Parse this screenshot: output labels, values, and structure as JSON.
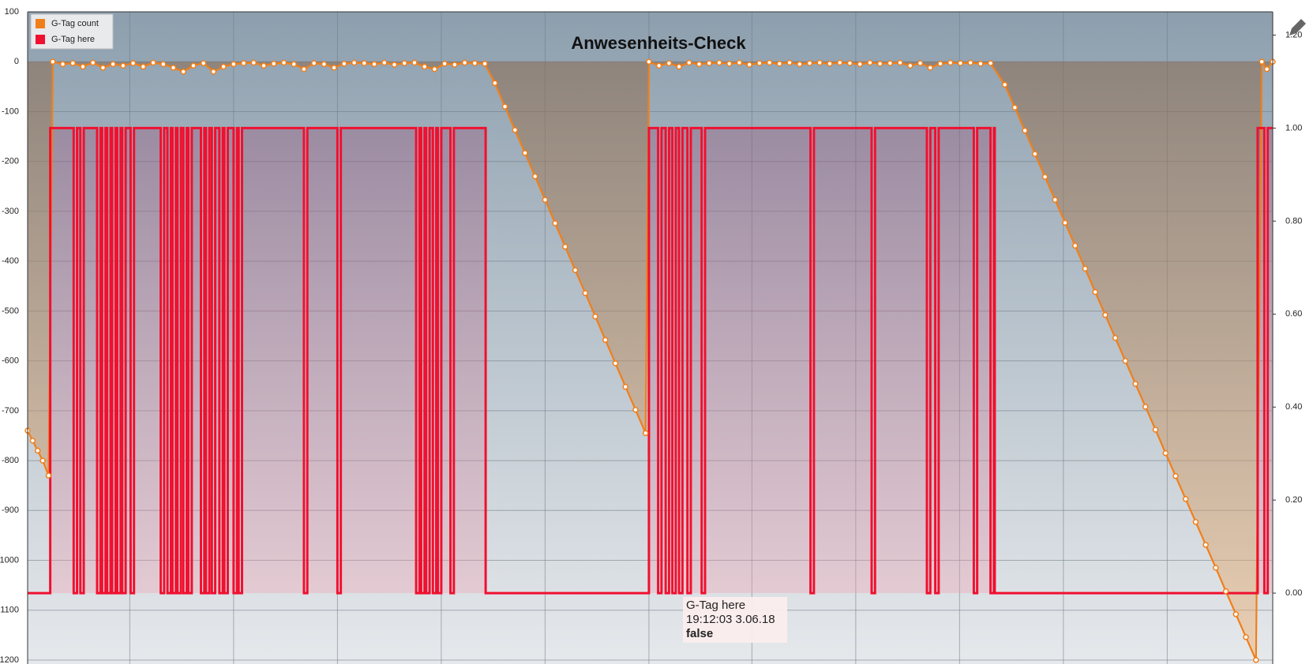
{
  "chart_data": {
    "type": "line",
    "title": "Anwesenheits-Check",
    "xlim": [
      0,
      1487
    ],
    "xticks": [
      122,
      246,
      370,
      494,
      618,
      742,
      865,
      989,
      1113,
      1237,
      1361
    ],
    "ylim": [
      -1200,
      100
    ],
    "yticks": [
      100,
      0,
      -100,
      -200,
      -300,
      -400,
      -500,
      -600,
      -700,
      -800,
      -900,
      {
        "value": -1000,
        "label": "1000"
      },
      {
        "value": -1100,
        "label": "1100"
      },
      {
        "value": -1200,
        "label": "1200"
      }
    ],
    "y2lim": [
      -0.144,
      1.25
    ],
    "y2ticks": [
      {
        "value": 1.2,
        "label": "1.20"
      },
      {
        "value": 1,
        "label": "1.00"
      },
      {
        "value": 0.8,
        "label": "0.80"
      },
      {
        "value": 0.6,
        "label": "0.60"
      },
      {
        "value": 0.4,
        "label": "0.40"
      },
      {
        "value": 0.2,
        "label": "0.20"
      },
      {
        "value": 0,
        "label": "0.00"
      }
    ],
    "grid": true,
    "legend": "upper left",
    "series": [
      {
        "name": "G-Tag count",
        "color": "#f07f1a",
        "axis": "y",
        "step": false,
        "x": [
          0,
          6,
          12,
          18,
          25,
          30,
          42,
          54,
          66,
          78,
          90,
          102,
          114,
          126,
          138,
          150,
          162,
          174,
          186,
          198,
          210,
          222,
          234,
          246,
          258,
          270,
          282,
          294,
          306,
          318,
          330,
          342,
          354,
          366,
          378,
          390,
          402,
          414,
          426,
          438,
          450,
          462,
          474,
          486,
          498,
          510,
          522,
          534,
          546,
          558,
          570,
          582,
          594,
          606,
          618,
          630,
          642,
          654,
          666,
          678,
          690,
          702,
          714,
          726,
          738,
          742,
          754,
          766,
          778,
          790,
          802,
          814,
          826,
          838,
          850,
          862,
          874,
          886,
          898,
          910,
          922,
          934,
          946,
          958,
          970,
          982,
          994,
          1006,
          1018,
          1030,
          1042,
          1054,
          1066,
          1078,
          1090,
          1102,
          1114,
          1126,
          1138,
          1150,
          1167,
          1179,
          1191,
          1203,
          1215,
          1227,
          1239,
          1251,
          1263,
          1275,
          1287,
          1299,
          1311,
          1323,
          1335,
          1347,
          1359,
          1371,
          1383,
          1395,
          1407,
          1419,
          1431,
          1443,
          1455,
          1467,
          1474,
          1480,
          1487
        ],
        "values": [
          -740,
          -760,
          -780,
          -800,
          -830,
          0,
          -5,
          -3,
          -10,
          -2,
          -12,
          -5,
          -8,
          -3,
          -10,
          -2,
          -5,
          -12,
          -20,
          -8,
          -3,
          -20,
          -10,
          -5,
          -3,
          -2,
          -8,
          -4,
          -2,
          -5,
          -15,
          -3,
          -5,
          -12,
          -4,
          -2,
          -3,
          -5,
          -2,
          -6,
          -3,
          -2,
          -10,
          -15,
          -4,
          -6,
          -2,
          -3,
          -4,
          -43,
          -90,
          -137,
          -183,
          -230,
          -277,
          -324,
          -371,
          -418,
          -464,
          -511,
          -558,
          -605,
          -652,
          -698,
          -745,
          0,
          -8,
          -3,
          -10,
          -2,
          -5,
          -3,
          -2,
          -4,
          -2,
          -6,
          -3,
          -2,
          -4,
          -2,
          -5,
          -3,
          -2,
          -4,
          -2,
          -3,
          -5,
          -2,
          -4,
          -3,
          -2,
          -8,
          -3,
          -12,
          -4,
          -2,
          -3,
          -2,
          -4,
          -3,
          -46,
          -92,
          -138,
          -185,
          -231,
          -277,
          -323,
          -369,
          -415,
          -462,
          -508,
          -554,
          -600,
          -646,
          -692,
          -738,
          -785,
          -831,
          -877,
          -923,
          -969,
          -1015,
          -1062,
          -1108,
          -1154,
          -1200,
          0,
          -15,
          0
        ]
      },
      {
        "name": "G-Tag here",
        "color": "#f0102f",
        "axis": "y2",
        "step": true,
        "x": [
          0,
          27,
          55,
          59,
          63,
          67,
          83,
          87,
          89,
          93,
          95,
          99,
          101,
          105,
          107,
          111,
          113,
          117,
          123,
          127,
          159,
          163,
          167,
          171,
          173,
          177,
          179,
          183,
          186,
          190,
          192,
          196,
          207,
          211,
          213,
          217,
          220,
          224,
          229,
          233,
          235,
          239,
          246,
          250,
          252,
          256,
          330,
          334,
          370,
          374,
          464,
          468,
          470,
          474,
          476,
          480,
          484,
          488,
          490,
          494,
          505,
          509,
          547,
          742,
          753,
          757,
          762,
          766,
          770,
          774,
          778,
          782,
          788,
          792,
          805,
          809,
          935,
          939,
          1008,
          1012,
          1074,
          1078,
          1084,
          1088,
          1130,
          1134,
          1150,
          1154,
          1155,
          1469,
          1477,
          1481,
          1487
        ],
        "values": [
          0,
          1,
          0,
          1,
          0,
          1,
          0,
          1,
          0,
          1,
          0,
          1,
          0,
          1,
          0,
          1,
          0,
          1,
          0,
          1,
          0,
          1,
          0,
          1,
          0,
          1,
          0,
          1,
          0,
          1,
          0,
          1,
          0,
          1,
          0,
          1,
          0,
          1,
          0,
          1,
          0,
          1,
          0,
          1,
          0,
          1,
          0,
          1,
          0,
          1,
          0,
          1,
          0,
          1,
          0,
          1,
          0,
          1,
          0,
          1,
          0,
          1,
          0,
          1,
          0,
          1,
          0,
          1,
          0,
          1,
          0,
          1,
          0,
          1,
          0,
          1,
          0,
          1,
          0,
          1,
          0,
          1,
          0,
          1,
          0,
          1,
          0,
          1,
          0,
          1,
          0,
          1,
          1
        ]
      }
    ],
    "tooltip": {
      "title": "G-Tag here",
      "time": "19:12:03 3.06.18",
      "value": "false"
    }
  }
}
